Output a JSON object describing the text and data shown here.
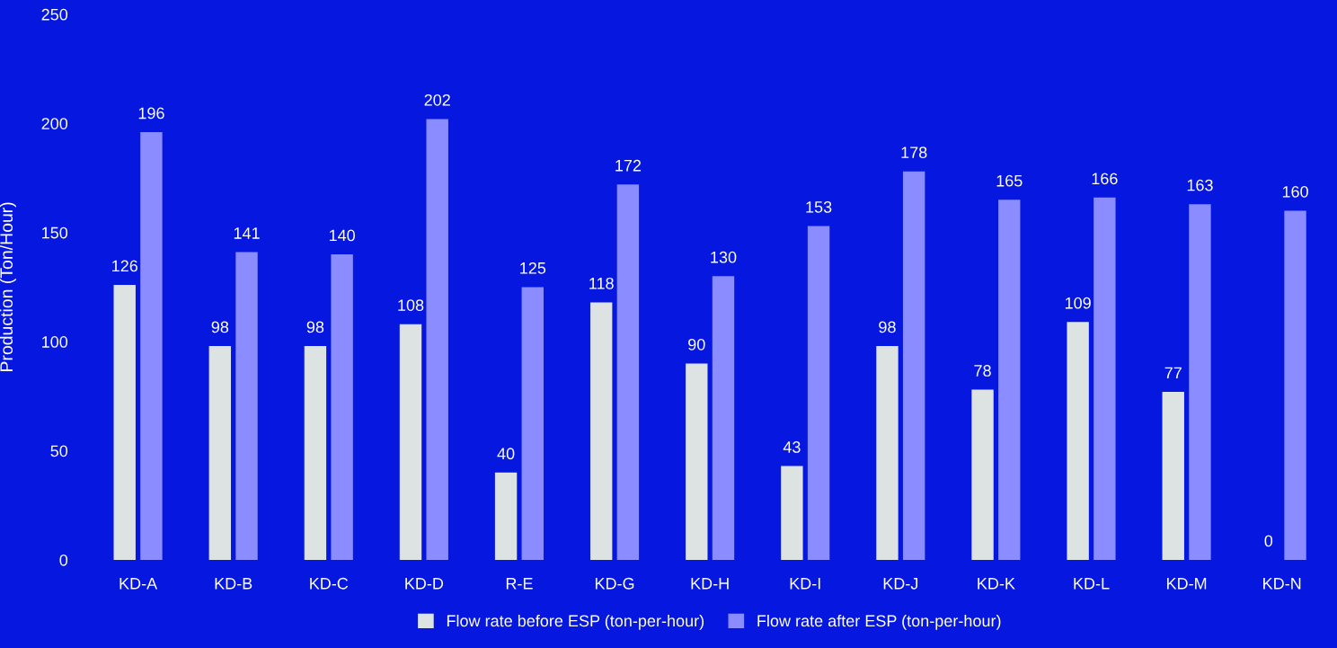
{
  "chart_data": {
    "type": "bar",
    "ylabel": "Production (Ton/Hour)",
    "categories": [
      "KD-A",
      "KD-B",
      "KD-C",
      "KD-D",
      "R-E",
      "KD-G",
      "KD-H",
      "KD-I",
      "KD-J",
      "KD-K",
      "KD-L",
      "KD-M",
      "KD-N"
    ],
    "series": [
      {
        "name": "Flow rate before ESP (ton-per-hour)",
        "color": "#dde2e3",
        "values": [
          126,
          98,
          98,
          108,
          40,
          118,
          90,
          43,
          98,
          78,
          109,
          77,
          0
        ]
      },
      {
        "name": "Flow rate after ESP (ton-per-hour)",
        "color": "#8a8cff",
        "values": [
          196,
          141,
          140,
          202,
          125,
          172,
          130,
          153,
          178,
          165,
          166,
          163,
          160
        ]
      }
    ],
    "ylim": [
      0,
      250
    ],
    "yticks": [
      0,
      50,
      100,
      150,
      200,
      250
    ],
    "data_labels": true,
    "grid": false,
    "legend": "bottom"
  }
}
